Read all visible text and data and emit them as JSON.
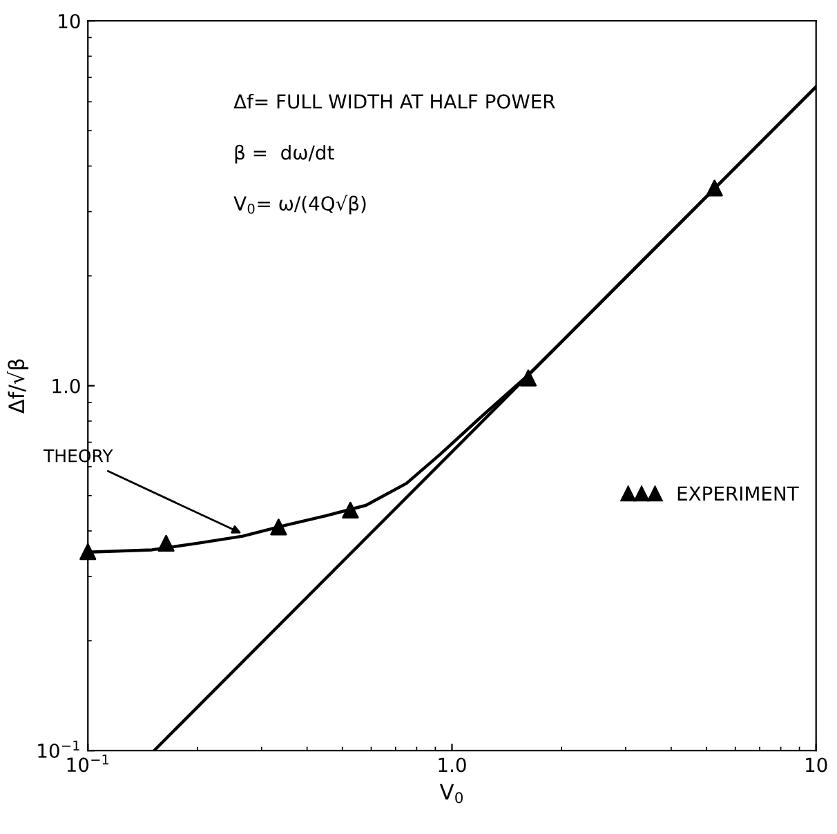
{
  "chart_data": {
    "type": "line",
    "xlabel": "V$_{0}$",
    "ylabel": "Δf/√β",
    "log": "xy",
    "xlim": [
      0.1,
      10
    ],
    "ylim": [
      0.1,
      10
    ],
    "xticks": [
      {
        "value": 0.1,
        "label": "10$^{−1}$"
      },
      {
        "value": 1,
        "label": "1.0"
      },
      {
        "value": 10,
        "label": "10"
      }
    ],
    "yticks": [
      {
        "value": 0.1,
        "label": "10$^{−1}$"
      },
      {
        "value": 1,
        "label": "1.0"
      },
      {
        "value": 10,
        "label": "10"
      }
    ],
    "grid": false,
    "legend": "right",
    "series": [
      {
        "color": "#000000",
        "marker": "none",
        "line_style": "solid",
        "x": [
          0.1,
          0.15,
          0.2,
          0.266,
          0.35,
          0.45,
          0.58,
          0.75,
          0.93,
          1.2,
          1.62,
          2,
          3,
          5,
          10
        ],
        "values": [
          0.35,
          0.355,
          0.37,
          0.387,
          0.415,
          0.44,
          0.47,
          0.54,
          0.65,
          0.82,
          1.07,
          1.32,
          1.98,
          3.3,
          6.6
        ]
      },
      {
        "color": "#000000",
        "marker": "none",
        "line_style": "solid",
        "x": [
          0.152,
          10
        ],
        "values": [
          0.1,
          6.6
        ]
      },
      {
        "type": "scatter",
        "name": "EXPERIMENT",
        "color": "#000000",
        "marker": "triangle",
        "x": [
          0.1,
          0.164,
          0.334,
          0.526,
          1.62,
          5.26
        ],
        "values": [
          0.351,
          0.37,
          0.41,
          0.456,
          1.05,
          3.48
        ]
      }
    ],
    "annotations": [
      "Δf= FULL WIDTH AT HALF POWER",
      "β =  dω/dt",
      "V$_{0}$= ω/(4Q√β)",
      {
        "text": "THEORY",
        "x": 0.27,
        "y": 0.39
      }
    ]
  }
}
